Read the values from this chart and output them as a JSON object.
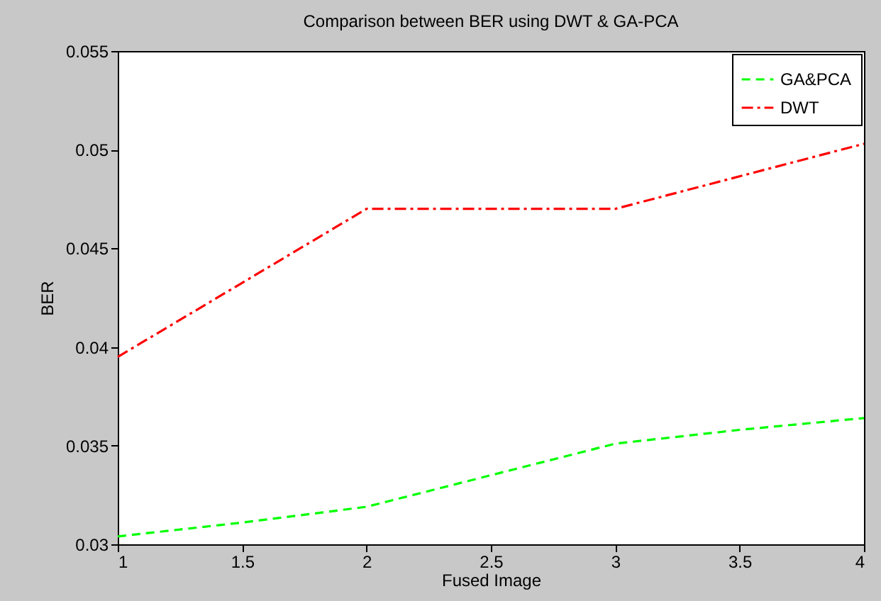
{
  "chart_data": {
    "type": "line",
    "title": "Comparison between BER using DWT & GA-PCA",
    "xlabel": "Fused Image",
    "ylabel": "BER",
    "xlim": [
      1,
      4
    ],
    "xticks": [
      1,
      1.5,
      2,
      2.5,
      3,
      3.5,
      4
    ],
    "ylim": [
      0.03,
      0.055
    ],
    "yticks": [
      0.03,
      0.035,
      0.04,
      0.045,
      0.05,
      0.055
    ],
    "grid": false,
    "legend": "top right",
    "series": [
      {
        "name": "GA&PCA",
        "color": "#00ff00",
        "line_style": "dashed",
        "x": [
          1,
          1.5,
          2,
          2.5,
          3,
          3.5,
          4
        ],
        "values": [
          0.0304,
          0.0311,
          0.0319,
          0.0335,
          0.0351,
          0.0358,
          0.0364
        ]
      },
      {
        "name": "DWT",
        "color": "#ff0000",
        "line_style": "dashdot",
        "x": [
          1,
          2,
          3,
          4
        ],
        "values": [
          0.0395,
          0.047,
          0.047,
          0.0503
        ]
      }
    ]
  }
}
